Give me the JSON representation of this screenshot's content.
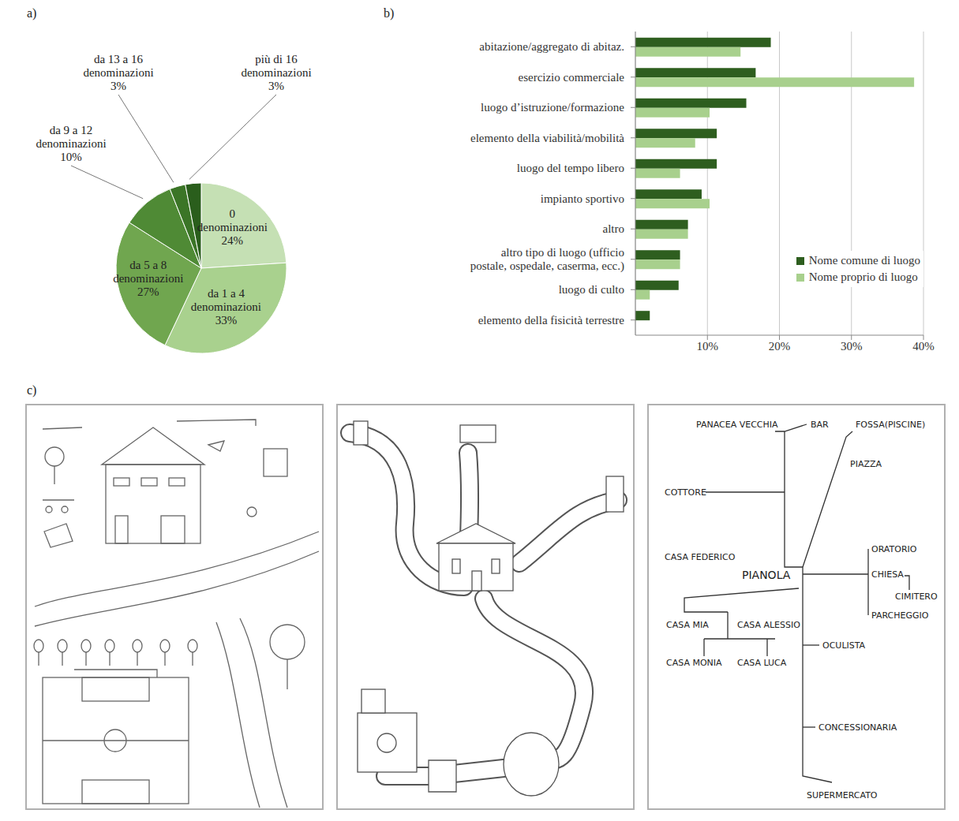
{
  "chart_data": [
    {
      "type": "pie",
      "panel": "a)",
      "categories": [
        "0 denominazioni",
        "da 1 a 4 denominazioni",
        "da 5 a 8 denominazioni",
        "da 9 a 12 denominazioni",
        "da 13 a 16 denominazioni",
        "più di 16 denominazioni"
      ],
      "values": [
        24,
        33,
        27,
        10,
        3,
        3
      ],
      "value_labels": [
        "24%",
        "33%",
        "27%",
        "10%",
        "3%",
        "3%"
      ],
      "colors": [
        "#c5e0b4",
        "#a9d18e",
        "#70a64f",
        "#4f8a35",
        "#3b7527",
        "#2a5e1c"
      ],
      "data_labels": true
    },
    {
      "type": "bar",
      "panel": "b)",
      "orientation": "horizontal",
      "categories": [
        "abitazione/aggregato di abitaz.",
        "esercizio commerciale",
        "luogo d’istruzione/formazione",
        "elemento della viabilità/mobilità",
        "luogo del tempo libero",
        "impianto sportivo",
        "altro",
        "altro tipo di luogo (ufficio postale, ospedale, caserma, ecc.)",
        "luogo di culto",
        "elemento della fisicità terrestre"
      ],
      "series": [
        {
          "name": "Nome comune di luogo",
          "color": "#2e5e1f",
          "values": [
            18.8,
            16.7,
            15.4,
            11.3,
            11.3,
            9.2,
            7.3,
            6.2,
            6.0,
            2.0
          ]
        },
        {
          "name": "Nome proprio di luogo",
          "color": "#a8d08d",
          "values": [
            14.6,
            38.7,
            10.3,
            8.3,
            6.2,
            10.3,
            7.3,
            6.2,
            2.0,
            0
          ]
        }
      ],
      "xlim": [
        0,
        40
      ],
      "xticks": [
        {
          "value": 10,
          "label": "10%"
        },
        {
          "value": 20,
          "label": "20%"
        },
        {
          "value": 30,
          "label": "30%"
        },
        {
          "value": 40,
          "label": "40%"
        }
      ],
      "grid": true,
      "legend": "lower right"
    }
  ],
  "drawings": {
    "panel": "c)",
    "map_labels": [
      "PANACEA VECCHIA",
      "BAR",
      "FOSSA(PISCINE)",
      "PIAZZA",
      "COTTORE",
      "CASA FEDERICO",
      "PIANOLA",
      "ORATORIO",
      "CHIESA",
      "CIMITERO",
      "PARCHEGGIO",
      "CASA MIA",
      "CASA ALESSIO",
      "CASA MONIA",
      "CASA LUCA",
      "OCULISTA",
      "CONCESSIONARIA",
      "SUPERMERCATO"
    ]
  }
}
